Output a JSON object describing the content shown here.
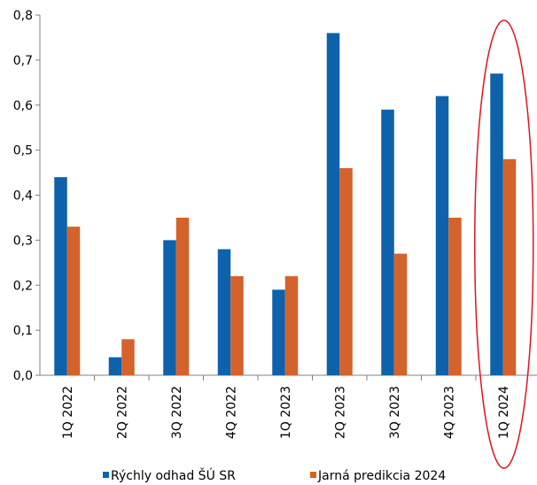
{
  "chart_data": {
    "type": "bar",
    "categories": [
      "1Q 2022",
      "2Q 2022",
      "3Q 2022",
      "4Q 2022",
      "1Q 2023",
      "2Q 2023",
      "3Q 2023",
      "4Q 2023",
      "1Q 2024"
    ],
    "series": [
      {
        "name": "Rýchly odhad ŠÚ SR",
        "values": [
          0.44,
          0.04,
          0.3,
          0.28,
          0.19,
          0.76,
          0.59,
          0.62,
          0.67
        ],
        "color": "#0d62ab"
      },
      {
        "name": "Jarná predikcia 2024",
        "values": [
          0.33,
          0.08,
          0.35,
          0.22,
          0.22,
          0.46,
          0.27,
          0.35,
          0.48
        ],
        "color": "#d4622b"
      }
    ],
    "yticks": [
      "0,0",
      "0,1",
      "0,2",
      "0,3",
      "0,4",
      "0,5",
      "0,6",
      "0,7",
      "0,8"
    ],
    "ylim": [
      0,
      0.8
    ],
    "grid": false,
    "legend_position": "bottom",
    "highlight": {
      "category": "1Q 2024",
      "shape": "ellipse",
      "color": "#e0141e"
    }
  }
}
